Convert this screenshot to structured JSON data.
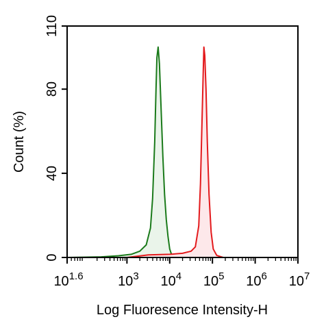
{
  "chart_data": {
    "type": "area",
    "xlabel": "Log Fluoresence Intensity-H",
    "ylabel": "Count  (%)",
    "x_scale": "log",
    "xlim_log10": [
      1.6,
      7
    ],
    "ylim": [
      0,
      110
    ],
    "yticks": [
      0,
      40,
      80,
      110
    ],
    "xticks": [
      {
        "base": "10",
        "exp": "1.6",
        "log10": 1.6
      },
      {
        "base": "10",
        "exp": "3",
        "log10": 3
      },
      {
        "base": "10",
        "exp": "4",
        "log10": 4
      },
      {
        "base": "10",
        "exp": "5",
        "log10": 5
      },
      {
        "base": "10",
        "exp": "6",
        "log10": 6
      },
      {
        "base": "10",
        "exp": "7",
        "log10": 7
      }
    ],
    "grid": false,
    "series": [
      {
        "color": "#1a7a1a",
        "fill": "#eaf4ea",
        "points_log10x_y": [
          [
            1.6,
            0
          ],
          [
            2.4,
            0.3
          ],
          [
            2.8,
            0.8
          ],
          [
            3.1,
            1.5
          ],
          [
            3.3,
            3
          ],
          [
            3.45,
            6
          ],
          [
            3.55,
            14
          ],
          [
            3.6,
            28
          ],
          [
            3.65,
            55
          ],
          [
            3.68,
            80
          ],
          [
            3.7,
            95
          ],
          [
            3.73,
            100
          ],
          [
            3.76,
            92
          ],
          [
            3.8,
            70
          ],
          [
            3.84,
            48
          ],
          [
            3.88,
            30
          ],
          [
            3.92,
            18
          ],
          [
            3.96,
            10
          ],
          [
            4.0,
            4
          ],
          [
            4.05,
            1
          ],
          [
            4.15,
            0.3
          ],
          [
            4.3,
            0
          ]
        ]
      },
      {
        "color": "#e3191c",
        "fill": "#fde8ea",
        "points_log10x_y": [
          [
            3.0,
            0
          ],
          [
            3.5,
            1.2
          ],
          [
            4.0,
            1.5
          ],
          [
            4.3,
            2
          ],
          [
            4.5,
            3
          ],
          [
            4.6,
            5
          ],
          [
            4.68,
            15
          ],
          [
            4.72,
            35
          ],
          [
            4.75,
            60
          ],
          [
            4.78,
            85
          ],
          [
            4.8,
            100
          ],
          [
            4.82,
            96
          ],
          [
            4.85,
            80
          ],
          [
            4.88,
            55
          ],
          [
            4.92,
            30
          ],
          [
            4.97,
            12
          ],
          [
            5.02,
            4
          ],
          [
            5.1,
            1
          ],
          [
            5.25,
            0
          ]
        ]
      }
    ]
  }
}
